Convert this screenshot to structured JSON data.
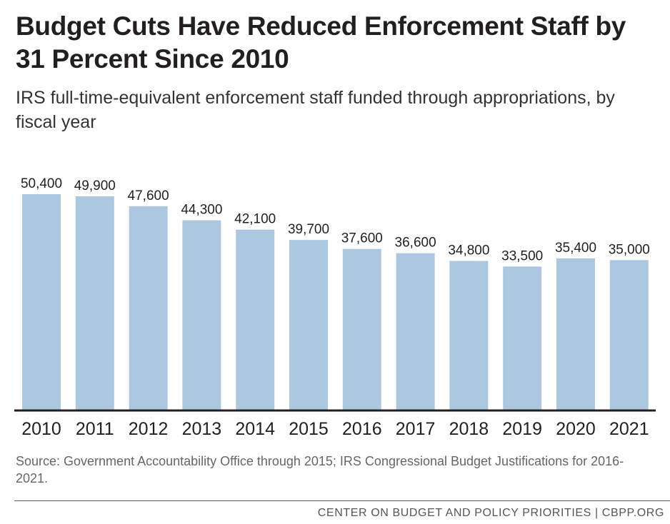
{
  "chart_data": {
    "type": "bar",
    "title": "Budget Cuts Have Reduced Enforcement Staff by 31 Percent Since 2010",
    "subtitle": "IRS full-time-equivalent enforcement staff funded through appropriations, by fiscal year",
    "categories": [
      "2010",
      "2011",
      "2012",
      "2013",
      "2014",
      "2015",
      "2016",
      "2017",
      "2018",
      "2019",
      "2020",
      "2021"
    ],
    "values": [
      50400,
      49900,
      47600,
      44300,
      42100,
      39700,
      37600,
      36600,
      34800,
      33500,
      35400,
      35000
    ],
    "value_labels": [
      "50,400",
      "49,900",
      "47,600",
      "44,300",
      "42,100",
      "39,700",
      "37,600",
      "36,600",
      "34,800",
      "33,500",
      "35,400",
      "35,000"
    ],
    "ylim": [
      0,
      50400
    ],
    "grid": false,
    "bar_color": "#abc8e0",
    "axis_color": "#231f20"
  },
  "footer": {
    "source": "Source: Government Accountability Office through 2015; IRS Congressional Budget Justifications for 2016-2021.",
    "credit": "CENTER ON BUDGET AND POLICY PRIORITIES | CBPP.ORG"
  }
}
